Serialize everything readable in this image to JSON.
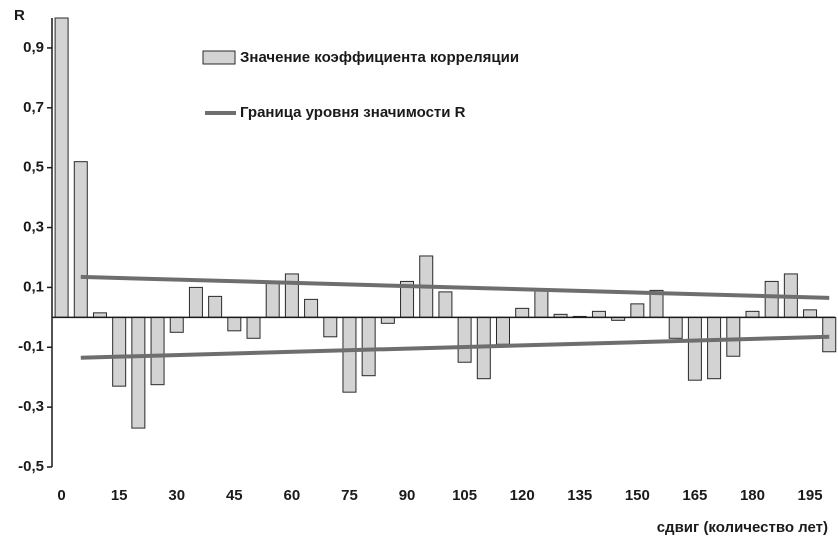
{
  "chart_data": {
    "type": "bar",
    "y_label": "R",
    "x_label": "сдвиг (количество лет)",
    "x": [
      0,
      5,
      10,
      15,
      20,
      25,
      30,
      35,
      40,
      45,
      50,
      55,
      60,
      65,
      70,
      75,
      80,
      85,
      90,
      95,
      100,
      105,
      110,
      115,
      120,
      125,
      130,
      135,
      140,
      145,
      150,
      155,
      160,
      165,
      170,
      175,
      180,
      185,
      190,
      195,
      200
    ],
    "series": [
      {
        "name": "Значение коэффициента корреляции",
        "color": "#d3d3d3",
        "values": [
          1.0,
          0.52,
          0.015,
          -0.23,
          -0.37,
          -0.225,
          -0.05,
          0.1,
          0.07,
          -0.045,
          -0.07,
          0.12,
          0.145,
          0.06,
          -0.065,
          -0.25,
          -0.195,
          -0.02,
          0.12,
          0.205,
          0.085,
          -0.15,
          -0.205,
          -0.09,
          0.03,
          0.09,
          0.01,
          0.003,
          0.02,
          -0.01,
          0.045,
          0.09,
          -0.07,
          -0.21,
          -0.205,
          -0.13,
          0.02,
          0.12,
          0.145,
          0.025,
          -0.115
        ]
      }
    ],
    "lines": [
      {
        "name": "Граница уровня значимости R",
        "color": "#6e6e6e",
        "x": [
          5,
          200
        ],
        "values": [
          0.135,
          0.065
        ]
      },
      {
        "color": "#6e6e6e",
        "x": [
          5,
          200
        ],
        "values": [
          -0.135,
          -0.065
        ]
      }
    ],
    "xlim": [
      -2.5,
      201.5
    ],
    "xticks": [
      0,
      15,
      30,
      45,
      60,
      75,
      90,
      105,
      120,
      135,
      150,
      165,
      180,
      195
    ],
    "ylim": [
      -0.5,
      1.0
    ],
    "yticks": [
      {
        "value": -0.5,
        "label": "-0,5"
      },
      {
        "value": -0.3,
        "label": "-0,3"
      },
      {
        "value": -0.1,
        "label": "-0,1"
      },
      {
        "value": 0.1,
        "label": "0,1"
      },
      {
        "value": 0.3,
        "label": "0,3"
      },
      {
        "value": 0.5,
        "label": "0,5"
      },
      {
        "value": 0.7,
        "label": "0,7"
      },
      {
        "value": 0.9,
        "label": "0,9"
      }
    ]
  }
}
